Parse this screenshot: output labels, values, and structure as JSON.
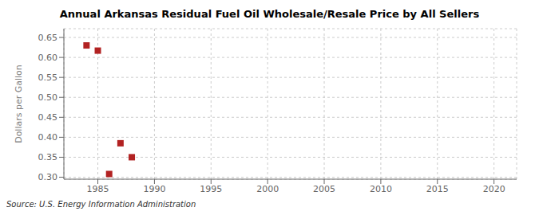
{
  "chart_data": {
    "type": "scatter",
    "title": "Annual Arkansas Residual Fuel Oil Wholesale/Resale Price by All Sellers",
    "ylabel": "Dollars per Gallon",
    "annotations": [
      "Source: U.S. Energy Information Administration"
    ],
    "x": [
      1984,
      1985,
      1986,
      1987,
      1988
    ],
    "values": [
      0.63,
      0.617,
      0.308,
      0.385,
      0.35
    ],
    "color": "#b22222",
    "marker": "square",
    "xlim": [
      1982,
      2022
    ],
    "xticks": [
      1985,
      1990,
      1995,
      2000,
      2005,
      2010,
      2015,
      2020
    ],
    "ylim": [
      0.295,
      0.672
    ],
    "yticks": [
      {
        "value": 0.3,
        "label": "0.30"
      },
      0.35,
      {
        "value": 0.4,
        "label": "0.40"
      },
      0.45,
      {
        "value": 0.5,
        "label": "0.50"
      },
      0.55,
      {
        "value": 0.6,
        "label": "0.60"
      },
      0.65
    ],
    "grid": true
  }
}
